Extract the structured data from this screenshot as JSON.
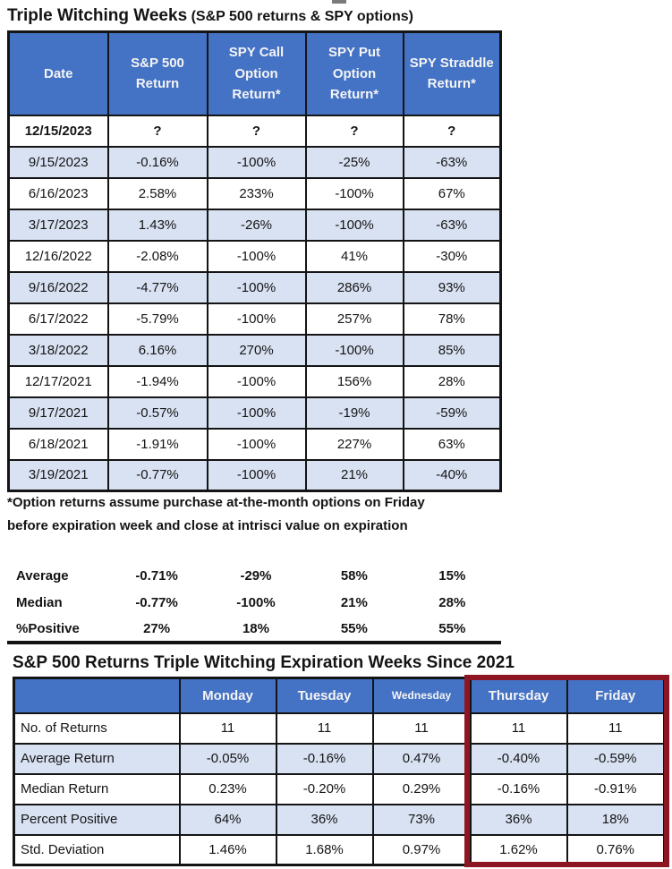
{
  "colors": {
    "header_blue": "#4472C4",
    "row_alt_blue": "#D9E2F3",
    "border_black": "#141414",
    "highlight_border_red": "#8D1622"
  },
  "table1": {
    "title_main": "Triple Witching Weeks",
    "title_sub": "(S&P 500 returns & SPY options)",
    "columns": [
      "Date",
      "S&P 500 Return",
      "SPY Call Option Return*",
      "SPY Put Option Return*",
      "SPY Straddle Return*"
    ],
    "rows": [
      {
        "date": "12/15/2023",
        "values": [
          "?",
          "?",
          "?",
          "?"
        ]
      },
      {
        "date": "9/15/2023",
        "values": [
          "-0.16%",
          "-100%",
          "-25%",
          "-63%"
        ]
      },
      {
        "date": "6/16/2023",
        "values": [
          "2.58%",
          "233%",
          "-100%",
          "67%"
        ]
      },
      {
        "date": "3/17/2023",
        "values": [
          "1.43%",
          "-26%",
          "-100%",
          "-63%"
        ]
      },
      {
        "date": "12/16/2022",
        "values": [
          "-2.08%",
          "-100%",
          "41%",
          "-30%"
        ]
      },
      {
        "date": "9/16/2022",
        "values": [
          "-4.77%",
          "-100%",
          "286%",
          "93%"
        ]
      },
      {
        "date": "6/17/2022",
        "values": [
          "-5.79%",
          "-100%",
          "257%",
          "78%"
        ]
      },
      {
        "date": "3/18/2022",
        "values": [
          "6.16%",
          "270%",
          "-100%",
          "85%"
        ]
      },
      {
        "date": "12/17/2021",
        "values": [
          "-1.94%",
          "-100%",
          "156%",
          "28%"
        ]
      },
      {
        "date": "9/17/2021",
        "values": [
          "-0.57%",
          "-100%",
          "-19%",
          "-59%"
        ]
      },
      {
        "date": "6/18/2021",
        "values": [
          "-1.91%",
          "-100%",
          "227%",
          "63%"
        ]
      },
      {
        "date": "3/19/2021",
        "values": [
          "-0.77%",
          "-100%",
          "21%",
          "-40%"
        ]
      }
    ]
  },
  "footnote": {
    "line1": "*Option returns assume purchase at-the-month options on Friday",
    "line2": "before expiration week and close at intrisci value on expiration"
  },
  "summary": {
    "rows": [
      {
        "label": "Average",
        "values": [
          "-0.71%",
          "-29%",
          "58%",
          "15%"
        ]
      },
      {
        "label": "Median",
        "values": [
          "-0.77%",
          "-100%",
          "21%",
          "28%"
        ]
      },
      {
        "label": "%Positive",
        "values": [
          "27%",
          "18%",
          "55%",
          "55%"
        ]
      }
    ]
  },
  "table2": {
    "title": "S&P 500 Returns Triple Witching Expiration Weeks Since 2021",
    "columns": [
      "",
      "Monday",
      "Tuesday",
      "Wednesday",
      "Thursday",
      "Friday"
    ],
    "rows": [
      {
        "label": "No. of Returns",
        "values": [
          "11",
          "11",
          "11",
          "11",
          "11"
        ]
      },
      {
        "label": "Average Return",
        "values": [
          "-0.05%",
          "-0.16%",
          "0.47%",
          "-0.40%",
          "-0.59%"
        ]
      },
      {
        "label": "Median Return",
        "values": [
          "0.23%",
          "-0.20%",
          "0.29%",
          "-0.16%",
          "-0.91%"
        ]
      },
      {
        "label": "Percent Positive",
        "values": [
          "64%",
          "36%",
          "73%",
          "36%",
          "18%"
        ]
      },
      {
        "label": "Std. Deviation",
        "values": [
          "1.46%",
          "1.68%",
          "0.97%",
          "1.62%",
          "0.76%"
        ]
      }
    ]
  }
}
